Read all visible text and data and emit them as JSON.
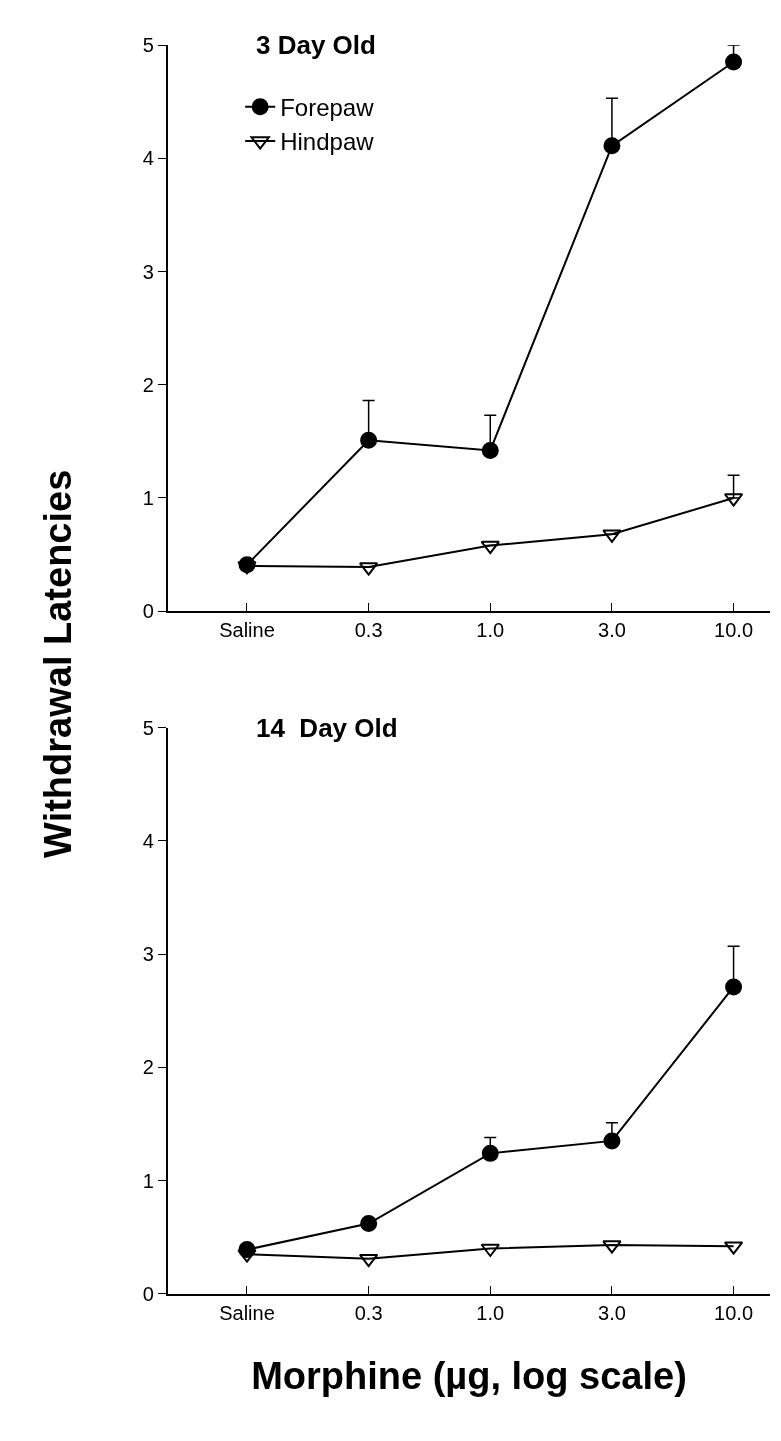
{
  "chart_data": [
    {
      "type": "line",
      "title": "3 Day Old",
      "ylabel": "Withdrawal Latencies",
      "categories": [
        "Saline",
        "0.3",
        "1.0",
        "3.0",
        "10.0"
      ],
      "ylim": [
        0,
        5
      ],
      "yticks": [
        0,
        1,
        2,
        3,
        4,
        5
      ],
      "legend": "top left",
      "line_style": "solid",
      "series": [
        {
          "name": "Forepaw",
          "color": "#000000",
          "marker": "circle",
          "values": [
            0.41,
            1.51,
            1.42,
            4.11,
            4.85
          ],
          "errors": [
            null,
            [
              1.51,
              1.86
            ],
            [
              1.42,
              1.73
            ],
            [
              4.11,
              4.53
            ],
            [
              4.85,
              5.0
            ]
          ]
        },
        {
          "name": "Hindpaw",
          "color": "#000000",
          "marker": "triangle",
          "values": [
            0.4,
            0.39,
            0.58,
            0.68,
            1.0
          ],
          "errors": [
            null,
            null,
            null,
            null,
            [
              1.0,
              1.2
            ]
          ]
        }
      ]
    },
    {
      "type": "line",
      "title": "14  Day Old",
      "xlabel": "Morphine (µg, log scale)",
      "categories": [
        "Saline",
        "0.3",
        "1.0",
        "3.0",
        "10.0"
      ],
      "ylim": [
        0,
        5
      ],
      "yticks": [
        0,
        1,
        2,
        3,
        4,
        5
      ],
      "legend": false,
      "line_style": "solid",
      "series": [
        {
          "color": "#000000",
          "marker": "circle",
          "values": [
            0.39,
            0.62,
            1.24,
            1.35,
            2.71
          ],
          "errors": [
            null,
            null,
            [
              1.24,
              1.38
            ],
            [
              1.35,
              1.51
            ],
            [
              2.71,
              3.07
            ]
          ]
        },
        {
          "color": "#000000",
          "marker": "triangle",
          "values": [
            0.35,
            0.31,
            0.4,
            0.43,
            0.42
          ],
          "errors": [
            null,
            null,
            null,
            null,
            null
          ]
        }
      ]
    }
  ]
}
